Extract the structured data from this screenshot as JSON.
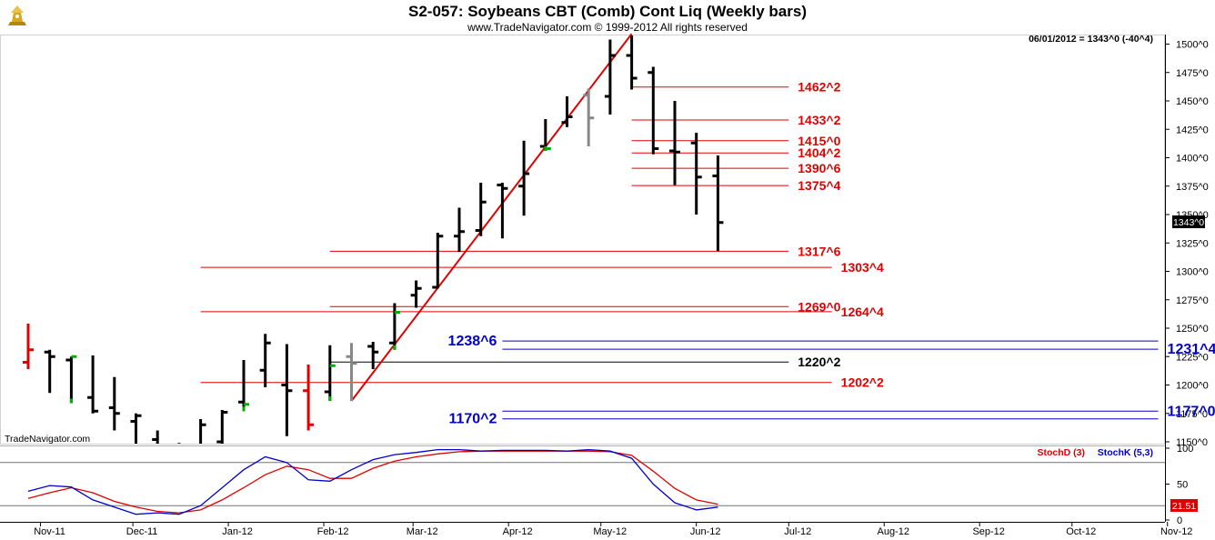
{
  "header": {
    "title": "S2-057:  Soybeans CBT (Comb) Cont Liq  (Weekly bars)",
    "subtitle": "www.TradeNavigator.com © 1999-2012 All rights reserved",
    "last_quote": "06/01/2012 = 1343^0 (-40^4)",
    "watermark": "TradeNavigator.com",
    "price_tag": "1343^0"
  },
  "chart_data": [
    {
      "type": "bar",
      "subtype": "ohlc",
      "title": "S2-057:  Soybeans CBT (Comb) Cont Liq  (Weekly bars)",
      "ylim": [
        1140,
        1510
      ],
      "y_ticks": [
        1150,
        1175,
        1200,
        1225,
        1250,
        1275,
        1300,
        1325,
        1350,
        1375,
        1400,
        1425,
        1450,
        1475,
        1500
      ],
      "y_tick_labels": [
        "1150^0",
        "1175^0",
        "1200^0",
        "1225^0",
        "1250^0",
        "1275^0",
        "1300^0",
        "1325^0",
        "1350^0",
        "1375^0",
        "1400^0",
        "1425^0",
        "1450^0",
        "1475^0",
        "1500^0"
      ],
      "x_months": [
        "Nov-11",
        "Dec-11",
        "Jan-12",
        "Feb-12",
        "Mar-12",
        "Apr-12",
        "May-12",
        "Jun-12",
        "Jul-12",
        "Aug-12",
        "Sep-12",
        "Oct-12",
        "Nov-12"
      ],
      "bars": [
        {
          "date": "2011-10-28",
          "o": 1220,
          "h": 1254,
          "l": 1214,
          "c": 1231,
          "color": "#e00000"
        },
        {
          "date": "2011-11-04",
          "o": 1229,
          "h": 1231,
          "l": 1193,
          "c": 1225,
          "color": "#000000"
        },
        {
          "date": "2011-11-11",
          "o": 1222,
          "h": 1225,
          "l": 1184,
          "c": 1225,
          "color": "#000000",
          "closeColor": "#00b000"
        },
        {
          "date": "2011-11-18",
          "o": 1189,
          "h": 1226,
          "l": 1175,
          "c": 1177,
          "color": "#000000"
        },
        {
          "date": "2011-11-25",
          "o": 1180,
          "h": 1207,
          "l": 1160,
          "c": 1175,
          "color": "#000000"
        },
        {
          "date": "2011-12-02",
          "o": 1168,
          "h": 1175,
          "l": 1145,
          "c": 1173,
          "color": "#000000"
        },
        {
          "date": "2011-12-09",
          "o": 1152,
          "h": 1160,
          "l": 1130,
          "c": 1140,
          "color": "#000000"
        },
        {
          "date": "2011-12-16",
          "o": 1135,
          "h": 1149,
          "l": 1120,
          "c": 1146,
          "color": "#000000"
        },
        {
          "date": "2011-12-23",
          "o": 1140,
          "h": 1170,
          "l": 1130,
          "c": 1165,
          "color": "#000000"
        },
        {
          "date": "2011-12-30",
          "o": 1150,
          "h": 1178,
          "l": 1140,
          "c": 1176,
          "color": "#000000"
        },
        {
          "date": "2012-01-06",
          "o": 1185,
          "h": 1222,
          "l": 1177,
          "c": 1183,
          "color": "#000000",
          "closeColor": "#00b000"
        },
        {
          "date": "2012-01-13",
          "o": 1213,
          "h": 1245,
          "l": 1198,
          "c": 1237,
          "color": "#000000"
        },
        {
          "date": "2012-01-20",
          "o": 1200,
          "h": 1236,
          "l": 1155,
          "c": 1195,
          "color": "#000000"
        },
        {
          "date": "2012-01-27",
          "o": 1195,
          "h": 1218,
          "l": 1160,
          "c": 1165,
          "color": "#e00000"
        },
        {
          "date": "2012-02-03",
          "o": 1194,
          "h": 1235,
          "l": 1186,
          "c": 1217,
          "color": "#000000",
          "closeColor": "#00b000"
        },
        {
          "date": "2012-02-10",
          "o": 1225,
          "h": 1237,
          "l": 1186,
          "c": 1219,
          "color": "#888888"
        },
        {
          "date": "2012-02-17",
          "o": 1234,
          "h": 1238,
          "l": 1214,
          "c": 1229,
          "color": "#000000"
        },
        {
          "date": "2012-02-24",
          "o": 1237,
          "h": 1272,
          "l": 1231,
          "c": 1264,
          "color": "#000000",
          "closeColor": "#00b000"
        },
        {
          "date": "2012-03-02",
          "o": 1279,
          "h": 1292,
          "l": 1268,
          "c": 1285,
          "color": "#000000"
        },
        {
          "date": "2012-03-09",
          "o": 1286,
          "h": 1334,
          "l": 1285,
          "c": 1331,
          "color": "#000000"
        },
        {
          "date": "2012-03-16",
          "o": 1331,
          "h": 1356,
          "l": 1317,
          "c": 1335,
          "color": "#000000"
        },
        {
          "date": "2012-03-23",
          "o": 1336,
          "h": 1378,
          "l": 1331,
          "c": 1361,
          "color": "#000000"
        },
        {
          "date": "2012-03-30",
          "o": 1376,
          "h": 1378,
          "l": 1329,
          "c": 1373,
          "color": "#000000"
        },
        {
          "date": "2012-04-06",
          "o": 1375,
          "h": 1415,
          "l": 1349,
          "c": 1386,
          "color": "#000000"
        },
        {
          "date": "2012-04-13",
          "o": 1410,
          "h": 1434,
          "l": 1406,
          "c": 1408,
          "color": "#000000",
          "closeColor": "#00b000"
        },
        {
          "date": "2012-04-20",
          "o": 1431,
          "h": 1454,
          "l": 1427,
          "c": 1436,
          "color": "#000000"
        },
        {
          "date": "2012-04-27",
          "o": 1455,
          "h": 1461,
          "l": 1410,
          "c": 1435,
          "color": "#888888"
        },
        {
          "date": "2012-05-04",
          "o": 1454,
          "h": 1504,
          "l": 1438,
          "c": 1490,
          "color": "#000000"
        },
        {
          "date": "2012-05-11",
          "o": 1490,
          "h": 1509,
          "l": 1460,
          "c": 1470,
          "color": "#000000"
        },
        {
          "date": "2012-05-18",
          "o": 1475,
          "h": 1480,
          "l": 1403,
          "c": 1408,
          "color": "#000000"
        },
        {
          "date": "2012-05-25",
          "o": 1406,
          "h": 1450,
          "l": 1376,
          "c": 1405,
          "color": "#000000"
        },
        {
          "date": "2012-06-01",
          "o": 1413,
          "h": 1422,
          "l": 1350,
          "c": 1383,
          "color": "#000000"
        },
        {
          "date": "2012-06-08",
          "o": 1384,
          "h": 1402,
          "l": 1318,
          "c": 1343,
          "color": "#000000"
        }
      ],
      "trendline": {
        "from": {
          "date": "2012-02-10",
          "value": 1186
        },
        "to": {
          "date": "2012-05-11",
          "value": 1509
        },
        "color": "#e00000"
      },
      "levels": [
        {
          "label": "1462^2",
          "value": 1462.25,
          "from": "2012-05-11",
          "to": "2012-07-01",
          "color": "#e00000"
        },
        {
          "label": "1433^2",
          "value": 1433.25,
          "from": "2012-05-11",
          "to": "2012-07-01",
          "color": "#e00000"
        },
        {
          "label": "1415^0",
          "value": 1415,
          "from": "2012-05-11",
          "to": "2012-07-01",
          "color": "#e00000"
        },
        {
          "label": "1404^2",
          "value": 1404.25,
          "from": "2012-05-11",
          "to": "2012-07-01",
          "color": "#e00000"
        },
        {
          "label": "1390^6",
          "value": 1390.75,
          "from": "2012-05-11",
          "to": "2012-07-01",
          "color": "#e00000"
        },
        {
          "label": "1375^4",
          "value": 1375.5,
          "from": "2012-05-11",
          "to": "2012-07-01",
          "color": "#e00000"
        },
        {
          "label": "1317^6",
          "value": 1317.75,
          "from": "2012-02-03",
          "to": "2012-07-01",
          "color": "#e00000"
        },
        {
          "label": "1303^4",
          "value": 1303.5,
          "from": "2011-12-23",
          "to": "2012-07-15",
          "color": "#e00000"
        },
        {
          "label": "1269^0",
          "value": 1269,
          "from": "2012-02-03",
          "to": "2012-07-01",
          "color": "#e00000"
        },
        {
          "label": "1264^4",
          "value": 1264.5,
          "from": "2011-12-23",
          "to": "2012-07-15",
          "color": "#e00000"
        },
        {
          "label": "1238^6",
          "value": 1238.75,
          "from": "2012-03-30",
          "to": "2012-10-29",
          "color": "#0000cc"
        },
        {
          "label": "1231^4",
          "value": 1231.5,
          "from": "2012-03-30",
          "to": "2012-10-29",
          "color": "#0000cc"
        },
        {
          "label": "1220^2",
          "value": 1220.25,
          "from": "2012-02-03",
          "to": "2012-07-01",
          "color": "#000000"
        },
        {
          "label": "1202^2",
          "value": 1202.25,
          "from": "2011-12-23",
          "to": "2012-07-15",
          "color": "#e00000"
        },
        {
          "label": "1177^0",
          "value": 1177,
          "from": "2012-03-30",
          "to": "2012-10-29",
          "color": "#0000cc"
        },
        {
          "label": "1170^2",
          "value": 1170.25,
          "from": "2012-03-30",
          "to": "2012-10-29",
          "color": "#0000cc"
        }
      ]
    },
    {
      "type": "line",
      "title": "Stochastic",
      "ylim": [
        0,
        100
      ],
      "y_ticks": [
        0,
        50,
        100
      ],
      "reference_lines": [
        80,
        20
      ],
      "current_value": "21.51",
      "series": [
        {
          "name": "StochD (3)",
          "color": "#e00000",
          "points": [
            [
              "2011-10-28",
              30
            ],
            [
              "2011-11-04",
              38
            ],
            [
              "2011-11-11",
              45
            ],
            [
              "2011-11-18",
              38
            ],
            [
              "2011-11-25",
              26
            ],
            [
              "2011-12-02",
              18
            ],
            [
              "2011-12-09",
              12
            ],
            [
              "2011-12-16",
              10
            ],
            [
              "2011-12-23",
              14
            ],
            [
              "2011-12-30",
              28
            ],
            [
              "2012-01-06",
              45
            ],
            [
              "2012-01-13",
              63
            ],
            [
              "2012-01-20",
              75
            ],
            [
              "2012-01-27",
              70
            ],
            [
              "2012-02-03",
              58
            ],
            [
              "2012-02-10",
              58
            ],
            [
              "2012-02-17",
              72
            ],
            [
              "2012-02-24",
              82
            ],
            [
              "2012-03-02",
              88
            ],
            [
              "2012-03-09",
              92
            ],
            [
              "2012-03-16",
              95
            ],
            [
              "2012-03-23",
              96
            ],
            [
              "2012-03-30",
              96
            ],
            [
              "2012-04-06",
              96
            ],
            [
              "2012-04-13",
              96
            ],
            [
              "2012-04-20",
              96
            ],
            [
              "2012-04-27",
              96
            ],
            [
              "2012-05-04",
              95
            ],
            [
              "2012-05-11",
              90
            ],
            [
              "2012-05-18",
              68
            ],
            [
              "2012-05-25",
              44
            ],
            [
              "2012-06-01",
              28
            ],
            [
              "2012-06-08",
              22
            ]
          ]
        },
        {
          "name": "StochK (5,3)",
          "color": "#0000cc",
          "points": [
            [
              "2011-10-28",
              40
            ],
            [
              "2011-11-04",
              48
            ],
            [
              "2011-11-11",
              46
            ],
            [
              "2011-11-18",
              28
            ],
            [
              "2011-11-25",
              18
            ],
            [
              "2011-12-02",
              8
            ],
            [
              "2011-12-09",
              10
            ],
            [
              "2011-12-16",
              8
            ],
            [
              "2011-12-23",
              20
            ],
            [
              "2011-12-30",
              45
            ],
            [
              "2012-01-06",
              70
            ],
            [
              "2012-01-13",
              88
            ],
            [
              "2012-01-20",
              80
            ],
            [
              "2012-01-27",
              56
            ],
            [
              "2012-02-03",
              54
            ],
            [
              "2012-02-10",
              70
            ],
            [
              "2012-02-17",
              84
            ],
            [
              "2012-02-24",
              91
            ],
            [
              "2012-03-02",
              94
            ],
            [
              "2012-03-09",
              98
            ],
            [
              "2012-03-16",
              98
            ],
            [
              "2012-03-23",
              96
            ],
            [
              "2012-03-30",
              97
            ],
            [
              "2012-04-06",
              97
            ],
            [
              "2012-04-13",
              97
            ],
            [
              "2012-04-20",
              96
            ],
            [
              "2012-04-27",
              98
            ],
            [
              "2012-05-04",
              96
            ],
            [
              "2012-05-11",
              86
            ],
            [
              "2012-05-18",
              50
            ],
            [
              "2012-05-25",
              24
            ],
            [
              "2012-06-01",
              14
            ],
            [
              "2012-06-08",
              18
            ]
          ]
        }
      ]
    }
  ],
  "colors": {
    "red": "#e00000",
    "blue": "#0000cc",
    "green": "#00b000",
    "grey": "#888888",
    "logo": "#b08a10"
  }
}
